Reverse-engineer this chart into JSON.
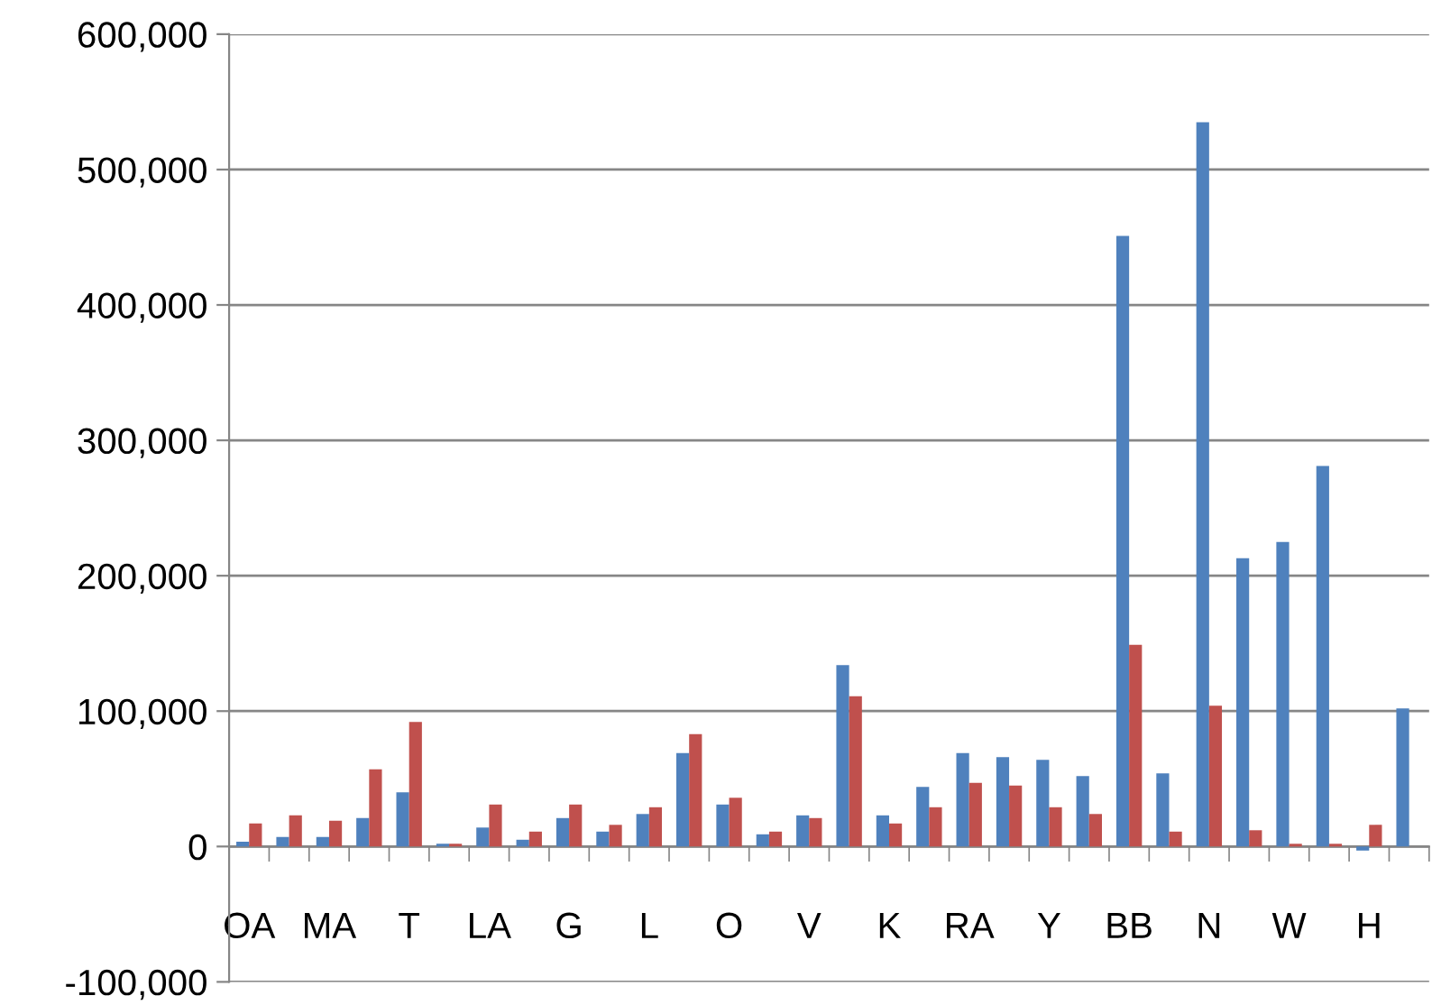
{
  "chart_data": {
    "type": "bar",
    "categories": [
      "OA",
      null,
      "MA",
      null,
      "T",
      null,
      "LA",
      null,
      "G",
      null,
      "L",
      null,
      "O",
      null,
      "V",
      null,
      "K",
      null,
      "RA",
      null,
      "Y",
      null,
      "BB",
      null,
      "N",
      null,
      "W",
      null,
      "H",
      null
    ],
    "series": [
      {
        "color": "#4f81bd",
        "values": [
          3500,
          7000,
          7000,
          21000,
          40000,
          2000,
          14000,
          5000,
          21000,
          11000,
          24000,
          69000,
          31000,
          9000,
          23000,
          134000,
          23000,
          44000,
          69000,
          66000,
          64000,
          52000,
          451000,
          54000,
          535000,
          213000,
          225000,
          281000,
          -3000,
          102000
        ]
      },
      {
        "color": "#c0504d",
        "values": [
          17000,
          23000,
          19000,
          57000,
          92000,
          2000,
          31000,
          11000,
          31000,
          16000,
          29000,
          83000,
          36000,
          11000,
          21000,
          111000,
          17000,
          29000,
          47000,
          45000,
          29000,
          24000,
          149000,
          11000,
          104000,
          12000,
          2000,
          2000,
          16000,
          null
        ]
      }
    ],
    "ylim": [
      -100000,
      600000
    ],
    "yticks": [
      {
        "value": -100000,
        "label": "-100,000"
      },
      0,
      {
        "value": 100000,
        "label": "100,000"
      },
      {
        "value": 200000,
        "label": "200,000"
      },
      {
        "value": 300000,
        "label": "300,000"
      },
      {
        "value": 400000,
        "label": "400,000"
      },
      {
        "value": 500000,
        "label": "500,000"
      },
      {
        "value": 600000,
        "label": "600,000"
      }
    ],
    "grid": "y"
  }
}
